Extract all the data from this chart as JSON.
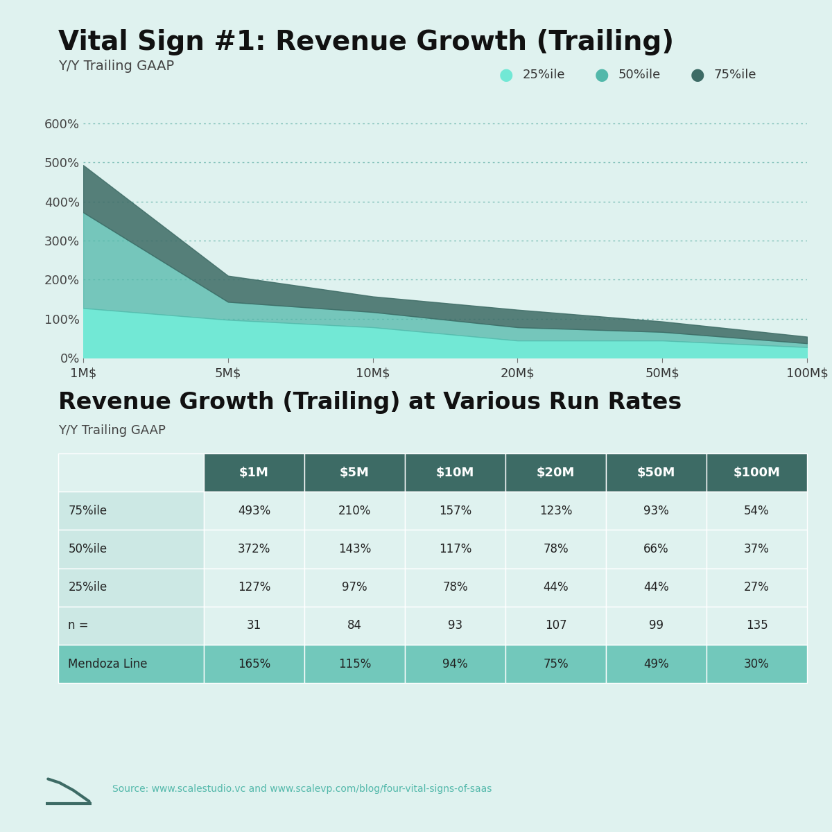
{
  "title": "Vital Sign #1: Revenue Growth (Trailing)",
  "subtitle": "Y/Y Trailing GAAP",
  "table_title": "Revenue Growth (Trailing) at Various Run Rates",
  "table_subtitle": "Y/Y Trailing GAAP",
  "bg_color": "#dff2ef",
  "x_labels": [
    "1M$",
    "5M$",
    "10M$",
    "20M$",
    "50M$",
    "100M$"
  ],
  "x_values": [
    0,
    1,
    2,
    3,
    4,
    5
  ],
  "percentile_25": [
    127,
    97,
    78,
    44,
    44,
    27
  ],
  "percentile_50": [
    372,
    143,
    117,
    78,
    66,
    37
  ],
  "percentile_75": [
    493,
    210,
    157,
    123,
    93,
    54
  ],
  "color_25": "#72e8d5",
  "color_50": "#52b8aa",
  "color_75": "#3d6b65",
  "grid_color": "#55aaa0",
  "y_ticks": [
    0,
    100,
    200,
    300,
    400,
    500,
    600
  ],
  "y_tick_labels": [
    "0%",
    "100%",
    "200%",
    "300%",
    "400%",
    "500%",
    "600%"
  ],
  "y_max": 660,
  "table_headers": [
    "",
    "$1M",
    "$5M",
    "$10M",
    "$20M",
    "$50M",
    "$100M"
  ],
  "table_rows": [
    [
      "75%ile",
      "493%",
      "210%",
      "157%",
      "123%",
      "93%",
      "54%"
    ],
    [
      "50%ile",
      "372%",
      "143%",
      "117%",
      "78%",
      "66%",
      "37%"
    ],
    [
      "25%ile",
      "127%",
      "97%",
      "78%",
      "44%",
      "44%",
      "27%"
    ],
    [
      "n =",
      "31",
      "84",
      "93",
      "107",
      "99",
      "135"
    ],
    [
      "Mendoza Line",
      "165%",
      "115%",
      "94%",
      "75%",
      "49%",
      "30%"
    ]
  ],
  "header_bg": "#3d6b65",
  "header_fg": "#ffffff",
  "row_bg_even": "#cce8e4",
  "row_bg_odd": "#dff2ef",
  "row_bg_mendoza": "#72c8bb",
  "row_label_bg": "#cce8e4",
  "source_text": "Source: www.scalestudio.vc and www.scalevp.com/blog/four-vital-signs-of-saas",
  "source_color": "#52b8aa"
}
